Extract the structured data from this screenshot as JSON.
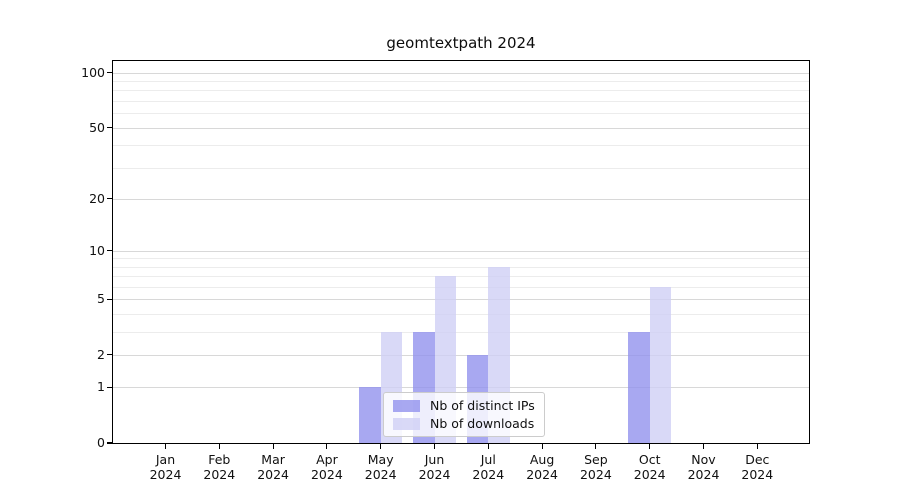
{
  "chart_data": {
    "type": "bar",
    "title": "geomtextpath 2024",
    "categories": [
      "Jan",
      "Feb",
      "Mar",
      "Apr",
      "May",
      "Jun",
      "Jul",
      "Aug",
      "Sep",
      "Oct",
      "Nov",
      "Dec"
    ],
    "category_year": "2024",
    "series": [
      {
        "name": "Nb of distinct IPs",
        "color": "#9292ee",
        "alpha": 0.8,
        "values": [
          0,
          0,
          0,
          0,
          1,
          3,
          2,
          0,
          0,
          3,
          0,
          0
        ]
      },
      {
        "name": "Nb of downloads",
        "color": "#cfcff5",
        "alpha": 0.8,
        "values": [
          0,
          0,
          0,
          0,
          3,
          7,
          8,
          0,
          0,
          6,
          0,
          0
        ]
      }
    ],
    "yscale": "log1p",
    "ylim": [
      0,
      116
    ],
    "yticks": [
      0,
      1,
      2,
      5,
      10,
      20,
      50,
      100
    ],
    "minor_yticks": [
      3,
      4,
      6,
      7,
      8,
      9,
      30,
      40,
      60,
      70,
      80,
      90
    ],
    "grid": true,
    "legend_position": "lower-center-inside",
    "colors": {
      "major_grid": "#d8d8d8",
      "minor_grid": "#ececec",
      "spine": "#000000",
      "text": "#111111",
      "background": "#ffffff"
    }
  }
}
